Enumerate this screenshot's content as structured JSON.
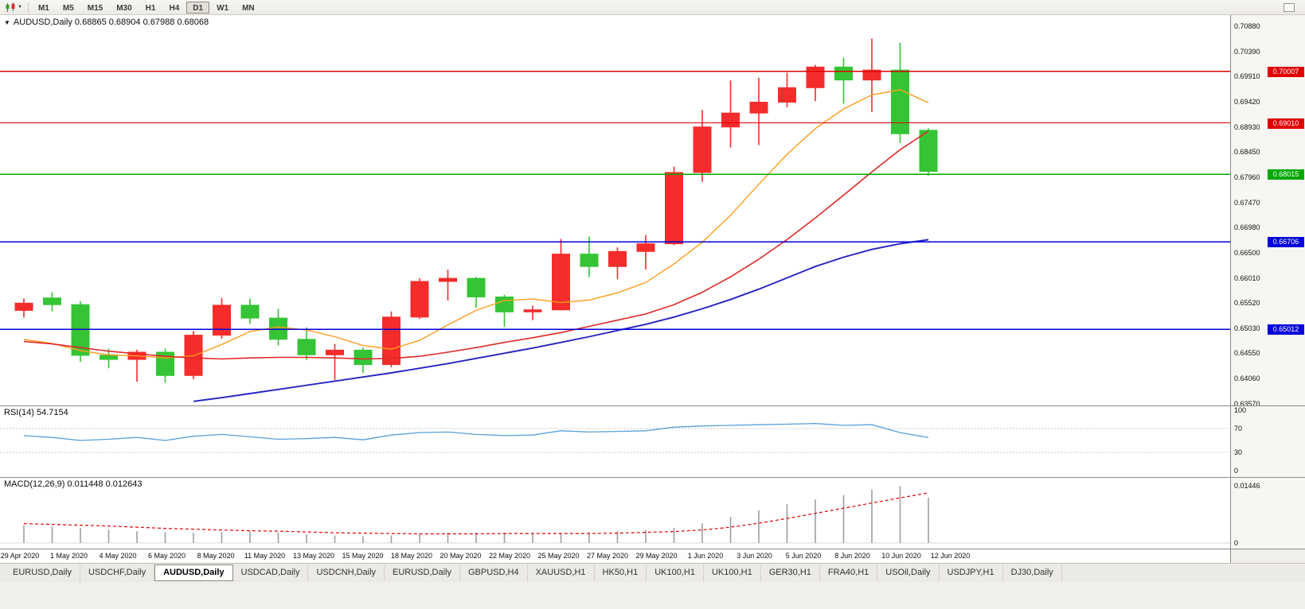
{
  "toolbar": {
    "timeframes": [
      "M1",
      "M5",
      "M15",
      "M30",
      "H1",
      "H4",
      "D1",
      "W1",
      "MN"
    ],
    "active_timeframe": "D1"
  },
  "chart": {
    "title_text": "AUDUSD,Daily 0.68865 0.68904 0.67988 0.68068",
    "symbol": "AUDUSD",
    "period": "Daily",
    "open": "0.68865",
    "high": "0.68904",
    "low": "0.67988",
    "close": "0.68068"
  },
  "chart_data": {
    "type": "candlestick",
    "symbol": "AUDUSD",
    "timeframe": "Daily",
    "up_color": "#f42c2c",
    "down_color": "#35c435",
    "price_axis": {
      "min": 0.6357,
      "max": 0.7088,
      "tick_labels": [
        "0.70880",
        "0.70390",
        "0.69910",
        "0.69420",
        "0.68930",
        "0.68450",
        "0.67960",
        "0.67470",
        "0.66980",
        "0.66500",
        "0.66010",
        "0.65520",
        "0.65030",
        "0.64550",
        "0.64060",
        "0.63570"
      ]
    },
    "candles": [
      {
        "date": "29 Apr 2020",
        "o": 0.6538,
        "h": 0.6561,
        "l": 0.6524,
        "c": 0.6552
      },
      {
        "date": "30 Apr 2020",
        "o": 0.6562,
        "h": 0.6573,
        "l": 0.6536,
        "c": 0.6549
      },
      {
        "date": "1 May 2020",
        "o": 0.6549,
        "h": 0.6556,
        "l": 0.6438,
        "c": 0.6451
      },
      {
        "date": "4 May 2020",
        "o": 0.6451,
        "h": 0.6464,
        "l": 0.6426,
        "c": 0.6443
      },
      {
        "date": "5 May 2020",
        "o": 0.6443,
        "h": 0.6462,
        "l": 0.64,
        "c": 0.6457
      },
      {
        "date": "6 May 2020",
        "o": 0.6457,
        "h": 0.6464,
        "l": 0.6398,
        "c": 0.6412
      },
      {
        "date": "7 May 2020",
        "o": 0.6412,
        "h": 0.6498,
        "l": 0.6405,
        "c": 0.649
      },
      {
        "date": "8 May 2020",
        "o": 0.649,
        "h": 0.6562,
        "l": 0.6483,
        "c": 0.6548
      },
      {
        "date": "11 May 2020",
        "o": 0.6548,
        "h": 0.6561,
        "l": 0.6512,
        "c": 0.6523
      },
      {
        "date": "12 May 2020",
        "o": 0.6523,
        "h": 0.6541,
        "l": 0.647,
        "c": 0.6482
      },
      {
        "date": "13 May 2020",
        "o": 0.6482,
        "h": 0.6505,
        "l": 0.6442,
        "c": 0.6452
      },
      {
        "date": "14 May 2020",
        "o": 0.6452,
        "h": 0.6473,
        "l": 0.6403,
        "c": 0.6461
      },
      {
        "date": "15 May 2020",
        "o": 0.6461,
        "h": 0.6466,
        "l": 0.6417,
        "c": 0.6433
      },
      {
        "date": "18 May 2020",
        "o": 0.6433,
        "h": 0.6536,
        "l": 0.6428,
        "c": 0.6525
      },
      {
        "date": "19 May 2020",
        "o": 0.6525,
        "h": 0.66,
        "l": 0.6521,
        "c": 0.6594
      },
      {
        "date": "20 May 2020",
        "o": 0.6594,
        "h": 0.6617,
        "l": 0.6557,
        "c": 0.66
      },
      {
        "date": "21 May 2020",
        "o": 0.66,
        "h": 0.6603,
        "l": 0.6543,
        "c": 0.6564
      },
      {
        "date": "22 May 2020",
        "o": 0.6564,
        "h": 0.6568,
        "l": 0.6506,
        "c": 0.6535
      },
      {
        "date": "25 May 2020",
        "o": 0.6535,
        "h": 0.6547,
        "l": 0.6519,
        "c": 0.6539
      },
      {
        "date": "26 May 2020",
        "o": 0.6539,
        "h": 0.6676,
        "l": 0.6538,
        "c": 0.6647
      },
      {
        "date": "27 May 2020",
        "o": 0.6647,
        "h": 0.6681,
        "l": 0.6602,
        "c": 0.6623
      },
      {
        "date": "28 May 2020",
        "o": 0.6623,
        "h": 0.666,
        "l": 0.6598,
        "c": 0.6652
      },
      {
        "date": "29 May 2020",
        "o": 0.6652,
        "h": 0.6684,
        "l": 0.6617,
        "c": 0.6667
      },
      {
        "date": "1 Jun 2020",
        "o": 0.6667,
        "h": 0.6816,
        "l": 0.6664,
        "c": 0.6805
      },
      {
        "date": "2 Jun 2020",
        "o": 0.6805,
        "h": 0.6926,
        "l": 0.6787,
        "c": 0.6893
      },
      {
        "date": "3 Jun 2020",
        "o": 0.6893,
        "h": 0.6983,
        "l": 0.6853,
        "c": 0.692
      },
      {
        "date": "4 Jun 2020",
        "o": 0.692,
        "h": 0.6988,
        "l": 0.6858,
        "c": 0.6941
      },
      {
        "date": "5 Jun 2020",
        "o": 0.6941,
        "h": 0.6998,
        "l": 0.6931,
        "c": 0.6969
      },
      {
        "date": "8 Jun 2020",
        "o": 0.6969,
        "h": 0.7013,
        "l": 0.6943,
        "c": 0.7009
      },
      {
        "date": "9 Jun 2020",
        "o": 0.7009,
        "h": 0.7027,
        "l": 0.6938,
        "c": 0.6984
      },
      {
        "date": "10 Jun 2020",
        "o": 0.6984,
        "h": 0.7064,
        "l": 0.6922,
        "c": 0.7003
      },
      {
        "date": "11 Jun 2020",
        "o": 0.7003,
        "h": 0.7056,
        "l": 0.6862,
        "c": 0.688
      },
      {
        "date": "12 Jun 2020",
        "o": 0.68865,
        "h": 0.68904,
        "l": 0.67988,
        "c": 0.68068
      }
    ],
    "horizontal_lines": [
      {
        "price": 0.70007,
        "label": "0.70007",
        "color": "#e00000"
      },
      {
        "price": 0.6901,
        "label": "0.69010",
        "color": "#e00000"
      },
      {
        "price": 0.68015,
        "label": "0.68015",
        "color": "#00a800"
      },
      {
        "price": 0.66706,
        "label": "0.66706",
        "color": "#0000dc"
      },
      {
        "price": 0.65012,
        "label": "0.65012",
        "color": "#0000dc"
      }
    ],
    "moving_averages": [
      {
        "name": "fast",
        "color": "#ff9c1c",
        "width": 1.4,
        "values": [
          0.6482,
          0.6474,
          0.646,
          0.6452,
          0.645,
          0.6446,
          0.645,
          0.6472,
          0.6497,
          0.6506,
          0.65,
          0.6487,
          0.647,
          0.6463,
          0.648,
          0.651,
          0.6538,
          0.6557,
          0.656,
          0.6553,
          0.6558,
          0.6572,
          0.6592,
          0.6628,
          0.667,
          0.6722,
          0.6782,
          0.684,
          0.689,
          0.6928,
          0.6955,
          0.6965,
          0.694
        ]
      },
      {
        "name": "medium",
        "color": "#e02828",
        "width": 1.6,
        "values": [
          0.6478,
          0.6473,
          0.6466,
          0.6459,
          0.6454,
          0.6449,
          0.6446,
          0.6444,
          0.6446,
          0.6447,
          0.6447,
          0.6446,
          0.6444,
          0.6445,
          0.6449,
          0.6457,
          0.6466,
          0.6476,
          0.6485,
          0.6495,
          0.6507,
          0.6519,
          0.6531,
          0.6549,
          0.6573,
          0.6603,
          0.6637,
          0.6675,
          0.6717,
          0.6761,
          0.6806,
          0.6849,
          0.6885
        ]
      },
      {
        "name": "slow",
        "color": "#2525c4",
        "width": 1.9,
        "values": [
          null,
          null,
          null,
          null,
          null,
          null,
          0.6362,
          0.6369,
          0.6377,
          0.6385,
          0.6393,
          0.6401,
          0.6409,
          0.6417,
          0.6426,
          0.6435,
          0.6445,
          0.6455,
          0.6465,
          0.6476,
          0.6487,
          0.6499,
          0.6511,
          0.6525,
          0.6541,
          0.6559,
          0.6579,
          0.6601,
          0.6623,
          0.6641,
          0.6656,
          0.6667,
          0.6675
        ]
      }
    ]
  },
  "rsi_panel": {
    "label": "RSI(14) 54.7154",
    "line_color": "#58a0d8",
    "levels": [
      70,
      30
    ],
    "ticks": [
      {
        "v": 100,
        "t": "100"
      },
      {
        "v": 70,
        "t": "70"
      },
      {
        "v": 30,
        "t": "30"
      },
      {
        "v": 0,
        "t": "0"
      }
    ],
    "values": [
      58,
      55,
      50,
      52,
      55,
      50,
      57,
      60,
      56,
      52,
      53,
      55,
      51,
      59,
      63,
      64,
      60,
      58,
      59,
      66,
      64,
      65,
      66,
      72,
      74,
      75,
      76,
      77,
      78,
      75,
      76,
      63,
      54.7
    ]
  },
  "macd_panel": {
    "label": "MACD(12,26,9) 0.011448 0.012643",
    "bar_color": "#9e9e9e",
    "signal_color": "#e00000",
    "max_value": 0.01446,
    "ticks": [
      {
        "v": 0.01446,
        "t": "0.01446"
      },
      {
        "v": 0,
        "t": "0"
      }
    ],
    "histogram": [
      0.0045,
      0.0042,
      0.0038,
      0.0034,
      0.003,
      0.0027,
      0.0026,
      0.0028,
      0.0029,
      0.0026,
      0.0022,
      0.0019,
      0.0017,
      0.0019,
      0.0023,
      0.0026,
      0.0027,
      0.0026,
      0.0024,
      0.0023,
      0.0027,
      0.003,
      0.0033,
      0.0038,
      0.005,
      0.0066,
      0.0083,
      0.0098,
      0.011,
      0.0121,
      0.0135,
      0.0144,
      0.01145
    ],
    "signal": [
      0.0049,
      0.0047,
      0.0045,
      0.0043,
      0.004,
      0.0037,
      0.0035,
      0.0033,
      0.0031,
      0.003,
      0.0028,
      0.0026,
      0.0025,
      0.0024,
      0.0023,
      0.0023,
      0.0023,
      0.0024,
      0.0024,
      0.0024,
      0.0024,
      0.0025,
      0.0027,
      0.0029,
      0.0033,
      0.004,
      0.005,
      0.0062,
      0.0075,
      0.0088,
      0.0101,
      0.0114,
      0.012643
    ]
  },
  "date_axis": {
    "labels": [
      "29 Apr 2020",
      "1 May 2020",
      "4 May 2020",
      "6 May 2020",
      "8 May 2020",
      "11 May 2020",
      "13 May 2020",
      "15 May 2020",
      "18 May 2020",
      "20 May 2020",
      "22 May 2020",
      "25 May 2020",
      "27 May 2020",
      "29 May 2020",
      "1 Jun 2020",
      "3 Jun 2020",
      "5 Jun 2020",
      "8 Jun 2020",
      "10 Jun 2020",
      "12 Jun 2020"
    ]
  },
  "tabs": {
    "active_index": 2,
    "items": [
      "EURUSD,Daily",
      "USDCHF,Daily",
      "AUDUSD,Daily",
      "USDCAD,Daily",
      "USDCNH,Daily",
      "EURUSD,Daily",
      "GBPUSD,H4",
      "XAUUSD,H1",
      "HK50,H1",
      "UK100,H1",
      "UK100,H1",
      "GER30,H1",
      "FRA40,H1",
      "USOil,Daily",
      "USDJPY,H1",
      "DJ30,Daily"
    ]
  }
}
